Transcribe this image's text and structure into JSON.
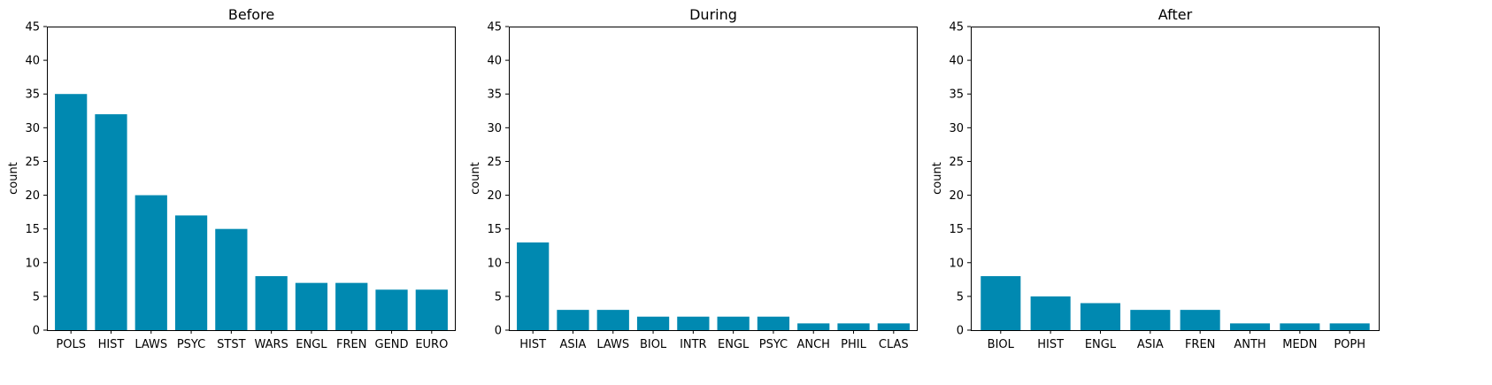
{
  "figure": {
    "background": "#ffffff",
    "bar_color": "#0089b1"
  },
  "chart_data": [
    {
      "type": "bar",
      "title": "Before",
      "xlabel": "",
      "ylabel": "count",
      "ylim": [
        0,
        45
      ],
      "yticks": [
        0,
        5,
        10,
        15,
        20,
        25,
        30,
        35,
        40,
        45
      ],
      "grid": false,
      "categories": [
        "POLS",
        "HIST",
        "LAWS",
        "PSYC",
        "STST",
        "WARS",
        "ENGL",
        "FREN",
        "GEND",
        "EURO"
      ],
      "values": [
        35,
        32,
        20,
        17,
        15,
        8,
        7,
        7,
        6,
        6
      ]
    },
    {
      "type": "bar",
      "title": "During",
      "xlabel": "",
      "ylabel": "count",
      "ylim": [
        0,
        45
      ],
      "yticks": [
        0,
        5,
        10,
        15,
        20,
        25,
        30,
        35,
        40,
        45
      ],
      "grid": false,
      "categories": [
        "HIST",
        "ASIA",
        "LAWS",
        "BIOL",
        "INTR",
        "ENGL",
        "PSYC",
        "ANCH",
        "PHIL",
        "CLAS"
      ],
      "values": [
        13,
        3,
        3,
        2,
        2,
        2,
        2,
        1,
        1,
        1
      ]
    },
    {
      "type": "bar",
      "title": "After",
      "xlabel": "",
      "ylabel": "count",
      "ylim": [
        0,
        45
      ],
      "yticks": [
        0,
        5,
        10,
        15,
        20,
        25,
        30,
        35,
        40,
        45
      ],
      "grid": false,
      "categories": [
        "BIOL",
        "HIST",
        "ENGL",
        "ASIA",
        "FREN",
        "ANTH",
        "MEDN",
        "POPH"
      ],
      "values": [
        8,
        5,
        4,
        3,
        3,
        1,
        1,
        1
      ]
    }
  ]
}
